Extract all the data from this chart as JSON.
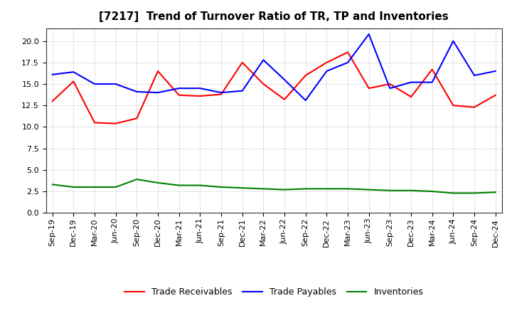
{
  "title": "[7217]  Trend of Turnover Ratio of TR, TP and Inventories",
  "x_labels": [
    "Sep-19",
    "Dec-19",
    "Mar-20",
    "Jun-20",
    "Sep-20",
    "Dec-20",
    "Mar-21",
    "Jun-21",
    "Sep-21",
    "Dec-21",
    "Mar-22",
    "Jun-22",
    "Sep-22",
    "Dec-22",
    "Mar-23",
    "Jun-23",
    "Sep-23",
    "Dec-23",
    "Mar-24",
    "Jun-24",
    "Sep-24",
    "Dec-24"
  ],
  "trade_receivables": [
    13.0,
    15.3,
    10.5,
    10.4,
    11.0,
    16.5,
    13.7,
    13.6,
    13.8,
    17.5,
    15.0,
    13.2,
    16.0,
    17.5,
    18.7,
    14.5,
    15.0,
    13.5,
    16.7,
    12.5,
    12.3,
    13.7
  ],
  "trade_payables": [
    16.1,
    16.4,
    15.0,
    15.0,
    14.1,
    14.0,
    14.5,
    14.5,
    14.0,
    14.2,
    17.8,
    15.5,
    13.1,
    16.5,
    17.5,
    20.8,
    14.5,
    15.2,
    15.2,
    20.0,
    16.0,
    16.5
  ],
  "inventories": [
    3.3,
    3.0,
    3.0,
    3.0,
    3.9,
    3.5,
    3.2,
    3.2,
    3.0,
    2.9,
    2.8,
    2.7,
    2.8,
    2.8,
    2.8,
    2.7,
    2.6,
    2.6,
    2.5,
    2.3,
    2.3,
    2.4
  ],
  "tr_color": "#ff0000",
  "tp_color": "#0000ff",
  "inv_color": "#008000",
  "ylim": [
    0.0,
    21.5
  ],
  "yticks": [
    0.0,
    2.5,
    5.0,
    7.5,
    10.0,
    12.5,
    15.0,
    17.5,
    20.0
  ],
  "background_color": "#ffffff",
  "grid_color": "#888888",
  "title_fontsize": 11,
  "tick_fontsize": 8,
  "legend_labels": [
    "Trade Receivables",
    "Trade Payables",
    "Inventories"
  ],
  "legend_fontsize": 9
}
